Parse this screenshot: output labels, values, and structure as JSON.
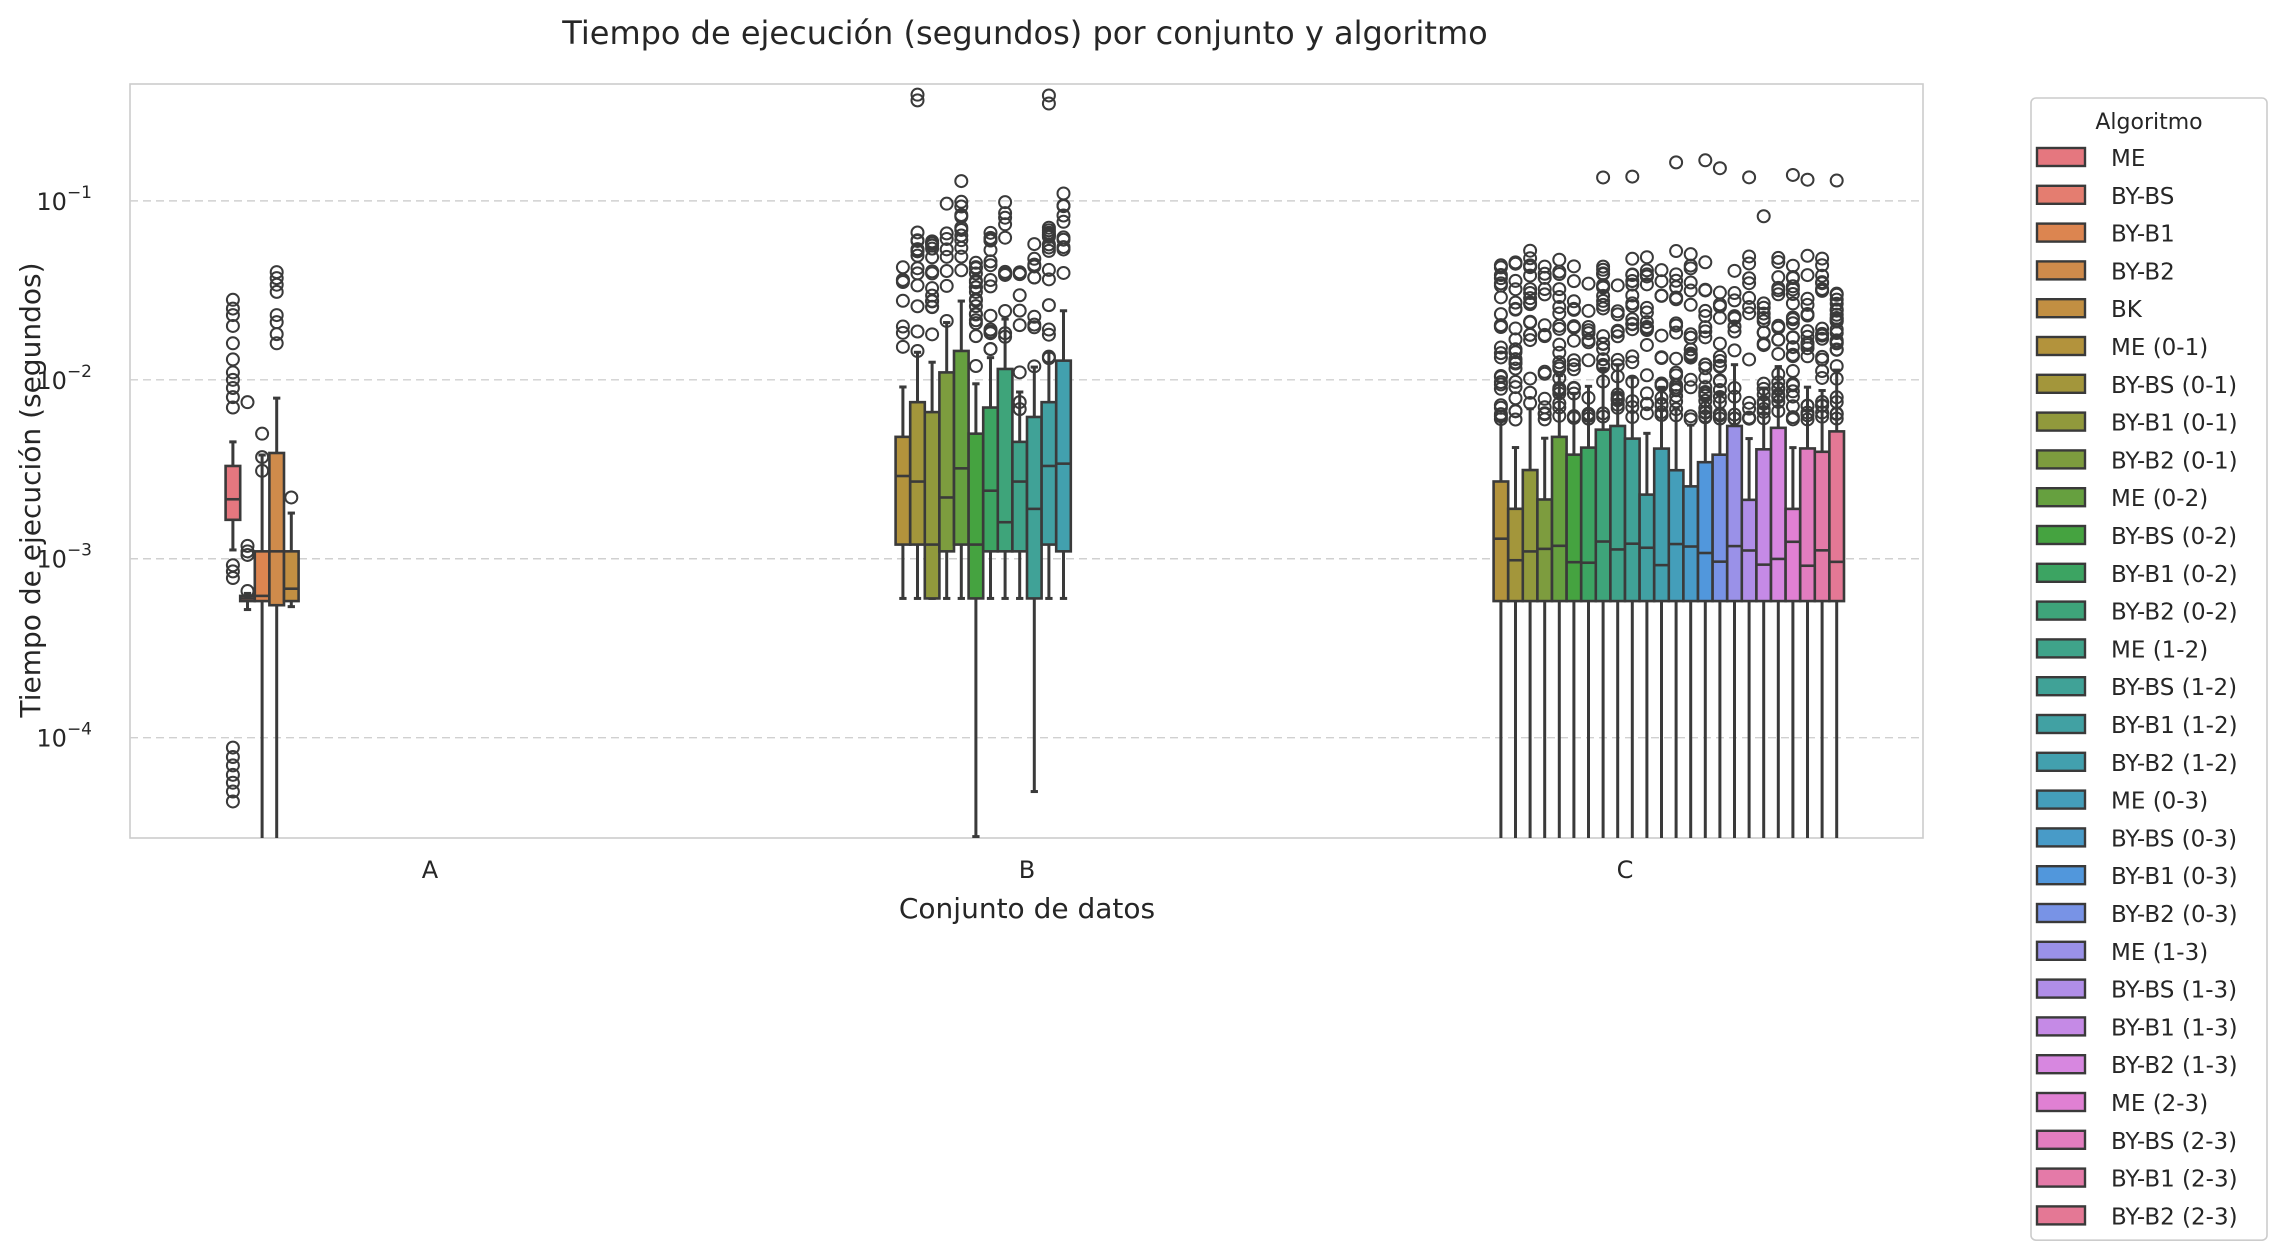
{
  "chart_data": {
    "type": "box",
    "title": "Tiempo de ejecución (segundos) por conjunto y algoritmo",
    "xlabel": "Conjunto de datos",
    "ylabel": "Tiempo de ejecución (segundos)",
    "y_scale": "log",
    "ylim": [
      2.75e-05,
      0.45
    ],
    "y_ticks": [
      {
        "value": 0.0001,
        "base": "10",
        "exp": "−4"
      },
      {
        "value": 0.001,
        "base": "10",
        "exp": "−3"
      },
      {
        "value": 0.01,
        "base": "10",
        "exp": "−2"
      },
      {
        "value": 0.1,
        "base": "10",
        "exp": "−1"
      }
    ],
    "grid": "horizontal-dashed",
    "legend_title": "Algoritmo",
    "legend_position": "outside-right",
    "categories": [
      "A",
      "B",
      "C"
    ],
    "series": [
      {
        "name": "ME",
        "color": "#e5777f"
      },
      {
        "name": "BY-BS",
        "color": "#e47d70"
      },
      {
        "name": "BY-B1",
        "color": "#dc8550"
      },
      {
        "name": "BY-B2",
        "color": "#cf8b4b"
      },
      {
        "name": "BK",
        "color": "#c28f42"
      },
      {
        "name": "ME (0-1)",
        "color": "#b3933c"
      },
      {
        "name": "BY-BS (0-1)",
        "color": "#a3963b"
      },
      {
        "name": "BY-B1 (0-1)",
        "color": "#91993c"
      },
      {
        "name": "BY-B2 (0-1)",
        "color": "#7d9c3e"
      },
      {
        "name": "ME (0-2)",
        "color": "#66a03f"
      },
      {
        "name": "BY-BS (0-2)",
        "color": "#45a340"
      },
      {
        "name": "BY-B1 (0-2)",
        "color": "#3ca462"
      },
      {
        "name": "BY-B2 (0-2)",
        "color": "#3ea47a"
      },
      {
        "name": "ME (1-2)",
        "color": "#3fa38a"
      },
      {
        "name": "BY-BS (1-2)",
        "color": "#40a297"
      },
      {
        "name": "BY-B1 (1-2)",
        "color": "#41a1a3"
      },
      {
        "name": "BY-B2 (1-2)",
        "color": "#42a0ae"
      },
      {
        "name": "ME (0-3)",
        "color": "#449eba"
      },
      {
        "name": "BY-BS (0-3)",
        "color": "#489bc8"
      },
      {
        "name": "BY-B1 (0-3)",
        "color": "#5197dc"
      },
      {
        "name": "BY-B2 (0-3)",
        "color": "#7893e6"
      },
      {
        "name": "ME (1-3)",
        "color": "#9a91e8"
      },
      {
        "name": "BY-BS (1-3)",
        "color": "#b08ee8"
      },
      {
        "name": "BY-B1 (1-3)",
        "color": "#c58ae6"
      },
      {
        "name": "BY-B2 (1-3)",
        "color": "#d787e0"
      },
      {
        "name": "ME (2-3)",
        "color": "#e080d3"
      },
      {
        "name": "BY-BS (2-3)",
        "color": "#e27dbf"
      },
      {
        "name": "BY-B1 (2-3)",
        "color": "#e47aa8"
      },
      {
        "name": "BY-B2 (2-3)",
        "color": "#e47895"
      }
    ],
    "boxes": [
      {
        "category": "A",
        "series": 0,
        "whislo": 0.00112,
        "q1": 0.00165,
        "median": 0.00215,
        "q3": 0.0033,
        "whishi": 0.0045,
        "fliers": [
          0.028,
          0.025,
          0.023,
          0.02,
          0.016,
          0.013,
          0.011,
          0.01,
          0.009,
          0.008,
          0.007,
          0.00092,
          0.00085,
          0.00078,
          8.8e-05,
          7.8e-05,
          7e-05,
          6.2e-05,
          5.6e-05,
          5e-05,
          4.4e-05
        ]
      },
      {
        "category": "A",
        "series": 1,
        "whislo": 0.00052,
        "q1": 0.00058,
        "median": 0.0006,
        "q3": 0.00062,
        "whishi": 0.00064,
        "fliers": [
          0.0075,
          0.00118,
          0.0011,
          0.00105,
          0.00066
        ]
      },
      {
        "category": "A",
        "series": 2,
        "whislo": 2.75e-05,
        "q1": 0.00058,
        "median": 0.00062,
        "q3": 0.0011,
        "whishi": 0.0038,
        "fliers": [
          0.005,
          0.0037,
          0.0031
        ]
      },
      {
        "category": "A",
        "series": 3,
        "whislo": 2.75e-05,
        "q1": 0.00055,
        "median": 0.0011,
        "q3": 0.0039,
        "whishi": 0.0079,
        "fliers": [
          0.04,
          0.037,
          0.034,
          0.031,
          0.023,
          0.021,
          0.018,
          0.016
        ]
      },
      {
        "category": "A",
        "series": 4,
        "whislo": 0.00054,
        "q1": 0.00058,
        "median": 0.00068,
        "q3": 0.0011,
        "whishi": 0.0018,
        "fliers": [
          0.0022
        ]
      }
    ]
  }
}
